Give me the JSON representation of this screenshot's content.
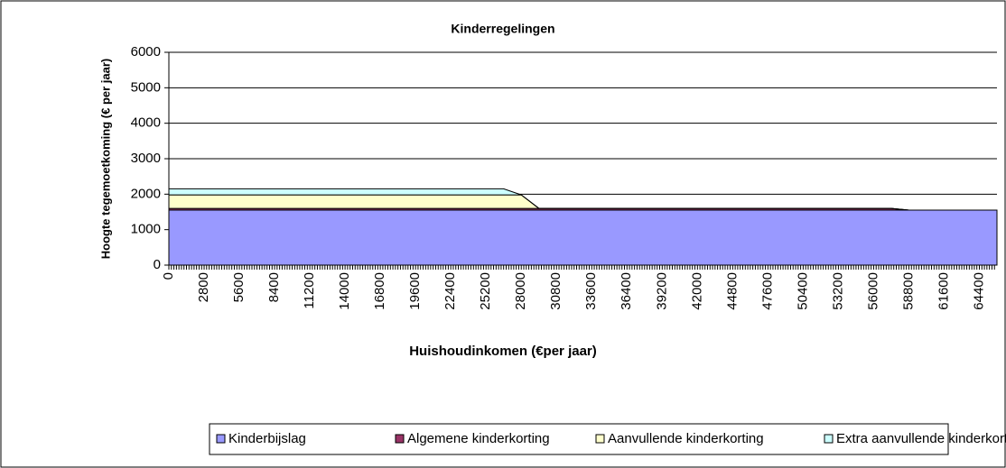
{
  "chart_data": {
    "type": "stacked_area",
    "title": "Kinderregelingen",
    "y_label": "Hoogte tegemoetkoming (€ per jaar)",
    "x_label": "Huishoudinkomen (€per jaar)",
    "categories": [
      0,
      null,
      2800,
      null,
      5600,
      null,
      8400,
      null,
      11200,
      null,
      14000,
      null,
      16800,
      null,
      19600,
      null,
      22400,
      null,
      25200,
      null,
      28000,
      null,
      30800,
      null,
      33600,
      null,
      36400,
      null,
      39200,
      null,
      42000,
      null,
      44800,
      null,
      47600,
      null,
      50400,
      null,
      53200,
      null,
      56000,
      null,
      58800,
      null,
      61600,
      null,
      64400,
      null
    ],
    "series": [
      {
        "name": "Kinderbijslag",
        "color": "#9999ff",
        "values": [
          1550,
          1550,
          1550,
          1550,
          1550,
          1550,
          1550,
          1550,
          1550,
          1550,
          1550,
          1550,
          1550,
          1550,
          1550,
          1550,
          1550,
          1550,
          1550,
          1550,
          1550,
          1550,
          1550,
          1550,
          1550,
          1550,
          1550,
          1550,
          1550,
          1550,
          1550,
          1550,
          1550,
          1550,
          1550,
          1550,
          1550,
          1550,
          1550,
          1550,
          1550,
          1550,
          1550,
          1550,
          1550,
          1550,
          1550,
          1550
        ]
      },
      {
        "name": "Algemene kinderkorting",
        "color": "#993366",
        "values": [
          50,
          50,
          50,
          50,
          50,
          50,
          50,
          50,
          50,
          50,
          50,
          50,
          50,
          50,
          50,
          50,
          50,
          50,
          50,
          50,
          50,
          50,
          50,
          50,
          50,
          50,
          50,
          50,
          50,
          50,
          50,
          50,
          50,
          50,
          50,
          50,
          50,
          50,
          50,
          50,
          50,
          50,
          0,
          0,
          0,
          0,
          0,
          0
        ]
      },
      {
        "name": "Aanvullende kinderkorting",
        "color": "#ffffcc",
        "values": [
          380,
          380,
          380,
          380,
          380,
          380,
          380,
          380,
          380,
          380,
          380,
          380,
          380,
          380,
          380,
          380,
          380,
          380,
          380,
          380,
          380,
          0,
          0,
          0,
          0,
          0,
          0,
          0,
          0,
          0,
          0,
          0,
          0,
          0,
          0,
          0,
          0,
          0,
          0,
          0,
          0,
          0,
          0,
          0,
          0,
          0,
          0,
          0
        ]
      },
      {
        "name": "Extra aanvullende kinderkorting",
        "color": "#ccffff",
        "values": [
          170,
          170,
          170,
          170,
          170,
          170,
          170,
          170,
          170,
          170,
          170,
          170,
          170,
          170,
          170,
          170,
          170,
          170,
          170,
          170,
          0,
          0,
          0,
          0,
          0,
          0,
          0,
          0,
          0,
          0,
          0,
          0,
          0,
          0,
          0,
          0,
          0,
          0,
          0,
          0,
          0,
          0,
          0,
          0,
          0,
          0,
          0,
          0
        ]
      }
    ],
    "ylim": [
      0,
      6000
    ],
    "yticks": [
      0,
      1000,
      2000,
      3000,
      4000,
      5000,
      6000
    ],
    "grid": true,
    "legend": "bottom"
  }
}
